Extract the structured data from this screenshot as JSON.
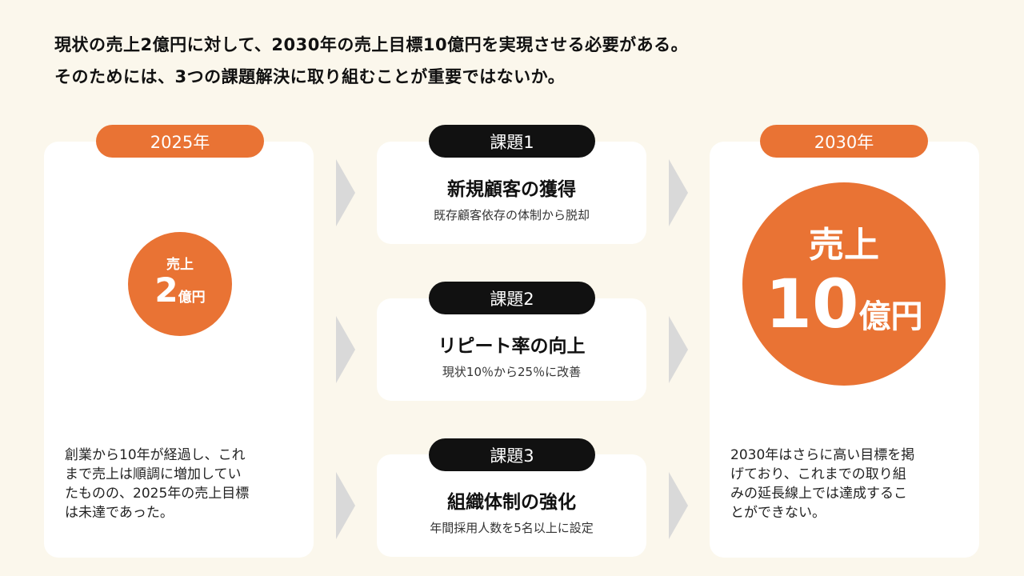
{
  "headline": {
    "line1": "現状の売上2億円に対して、2030年の売上目標10億円を実現させる必要がある。",
    "line2": "そのためには、3つの課題解決に取り組むことが重要ではないか。"
  },
  "left": {
    "label": "2025年",
    "circle_label": "売上",
    "circle_value": "2",
    "circle_unit": "億円",
    "desc": [
      "創業から10年が経過し、これ",
      "まで売上は順調に増加してい",
      "たものの、2025年の売上目標",
      "は未達であった。"
    ]
  },
  "tasks": [
    {
      "label": "課題1",
      "title": "新規顧客の獲得",
      "sub": "既存顧客依存の体制から脱却"
    },
    {
      "label": "課題2",
      "title": "リピート率の向上",
      "sub": "現状10％から25％に改善"
    },
    {
      "label": "課題3",
      "title": "組織体制の強化",
      "sub": "年間採用人数を5名以上に設定"
    }
  ],
  "right": {
    "label": "2030年",
    "circle_label": "売上",
    "circle_value": "10",
    "circle_unit": "億円",
    "desc": [
      "2030年はさらに高い目標を掲",
      "げており、これまでの取り組",
      "みの延長線上では達成するこ",
      "とができない。"
    ]
  },
  "colors": {
    "accent": "#e97334",
    "background": "#fbf7ec",
    "arrow": "#d9d9d9"
  }
}
